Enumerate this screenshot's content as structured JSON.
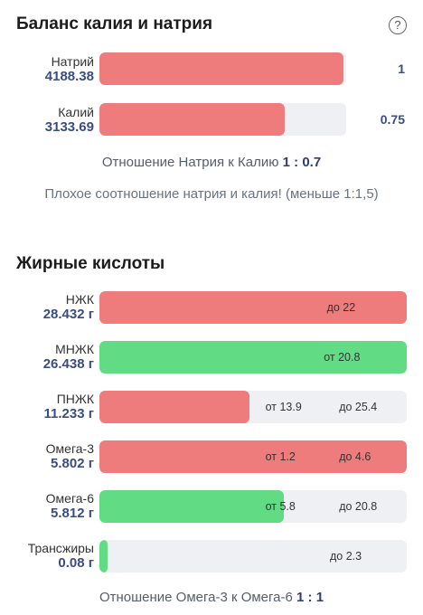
{
  "balance": {
    "title": "Баланс калия и натрия",
    "help_icon": "question-circle-icon",
    "help_glyph": "?",
    "rows": [
      {
        "name": "Натрий",
        "value": "4188.38",
        "fill": 0.99,
        "color": "#ee7c7c",
        "ratio": "1"
      },
      {
        "name": "Калий",
        "value": "3133.69",
        "fill": 0.75,
        "color": "#ee7c7c",
        "ratio": "0.75"
      }
    ],
    "ratio_caption": "Отношение Натрия к Калию",
    "ratio_value": "1 : 0.7",
    "warning": "Плохое соотношение натрия и калия! (меньше 1:1,5)"
  },
  "fats": {
    "title": "Жирные кислоты",
    "rows": [
      {
        "name": "НЖК",
        "value": "28.432 г",
        "fill": 1.0,
        "color": "#ee7c7c",
        "marks": [
          {
            "text": "до 22",
            "at": 0.74
          }
        ]
      },
      {
        "name": "МНЖК",
        "value": "26.438 г",
        "fill": 1.0,
        "color": "#62dc84",
        "marks": [
          {
            "text": "от 20.8",
            "at": 0.73
          }
        ]
      },
      {
        "name": "ПНЖК",
        "value": "11.233 г",
        "fill": 0.487,
        "color": "#ee7c7c",
        "marks": [
          {
            "text": "от 13.9",
            "at": 0.54
          },
          {
            "text": "до 25.4",
            "at": 0.78
          }
        ]
      },
      {
        "name": "Омега-3",
        "value": "5.802 г",
        "fill": 1.0,
        "color": "#ee7c7c",
        "marks": [
          {
            "text": "от 1.2",
            "at": 0.54
          },
          {
            "text": "до 4.6",
            "at": 0.78
          }
        ]
      },
      {
        "name": "Омега-6",
        "value": "5.812 г",
        "fill": 0.6,
        "color": "#62dc84",
        "marks": [
          {
            "text": "от 5.8",
            "at": 0.54
          },
          {
            "text": "до 20.8",
            "at": 0.78
          }
        ]
      },
      {
        "name": "Трансжиры",
        "value": "0.08 г",
        "fill": 0.025,
        "color": "#62dc84",
        "marks": [
          {
            "text": "до 2.3",
            "at": 0.75
          }
        ]
      }
    ],
    "ratio_caption": "Отношение Омега-3 к Омега-6",
    "ratio_value": "1 : 1"
  }
}
